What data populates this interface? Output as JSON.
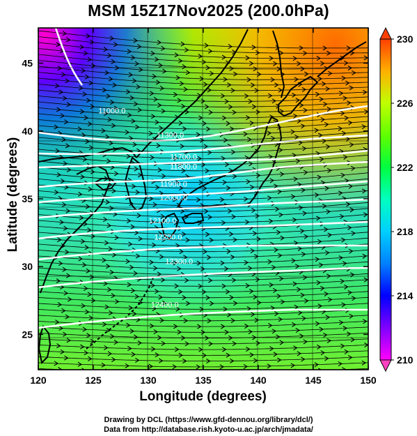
{
  "title": "MSM 15Z17Nov2025 (200.0hPa)",
  "xlabel": "Longitude (degrees)",
  "ylabel": "Latitude  (degrees)",
  "credits": {
    "line1": "Drawing by DCL (https://www.gfd-dennou.org/library/dcl/)",
    "line2": "Data from http://database.rish.kyoto-u.ac.jp/arch/jmadata/"
  },
  "axes": {
    "x_ticks": [
      120,
      125,
      130,
      135,
      140,
      145,
      150
    ],
    "y_ticks": [
      25,
      30,
      35,
      40,
      45
    ],
    "xlim": [
      120,
      150
    ],
    "ylim": [
      22.4,
      47.6
    ]
  },
  "colorbar": {
    "min": 210,
    "max": 230,
    "tick_labels": [
      "230",
      "226",
      "222",
      "218",
      "214",
      "210"
    ],
    "colors": [
      "#ff00ff",
      "#8000ff",
      "#0000ff",
      "#0080ff",
      "#00d0ff",
      "#00ffc0",
      "#00ff40",
      "#60ff00",
      "#c0ff00",
      "#ffff00",
      "#ffb000",
      "#ff6000",
      "#ff0000"
    ]
  },
  "contours": {
    "labels": [
      {
        "text": "11000.0",
        "lon": 126.7,
        "lat": 41.5
      },
      {
        "text": "11300.0",
        "lon": 132.0,
        "lat": 39.7
      },
      {
        "text": "11700.0",
        "lon": 133.2,
        "lat": 38.1
      },
      {
        "text": "11800.0",
        "lon": 133.2,
        "lat": 37.4
      },
      {
        "text": "11900.0",
        "lon": 132.3,
        "lat": 36.1
      },
      {
        "text": "12000.0",
        "lon": 132.3,
        "lat": 35.1
      },
      {
        "text": "12100.0",
        "lon": 131.3,
        "lat": 33.4
      },
      {
        "text": "12200.0",
        "lon": 131.8,
        "lat": 32.2
      },
      {
        "text": "12300.0",
        "lon": 132.8,
        "lat": 30.4
      },
      {
        "text": "12400.0",
        "lon": 131.5,
        "lat": 27.2
      }
    ]
  }
}
